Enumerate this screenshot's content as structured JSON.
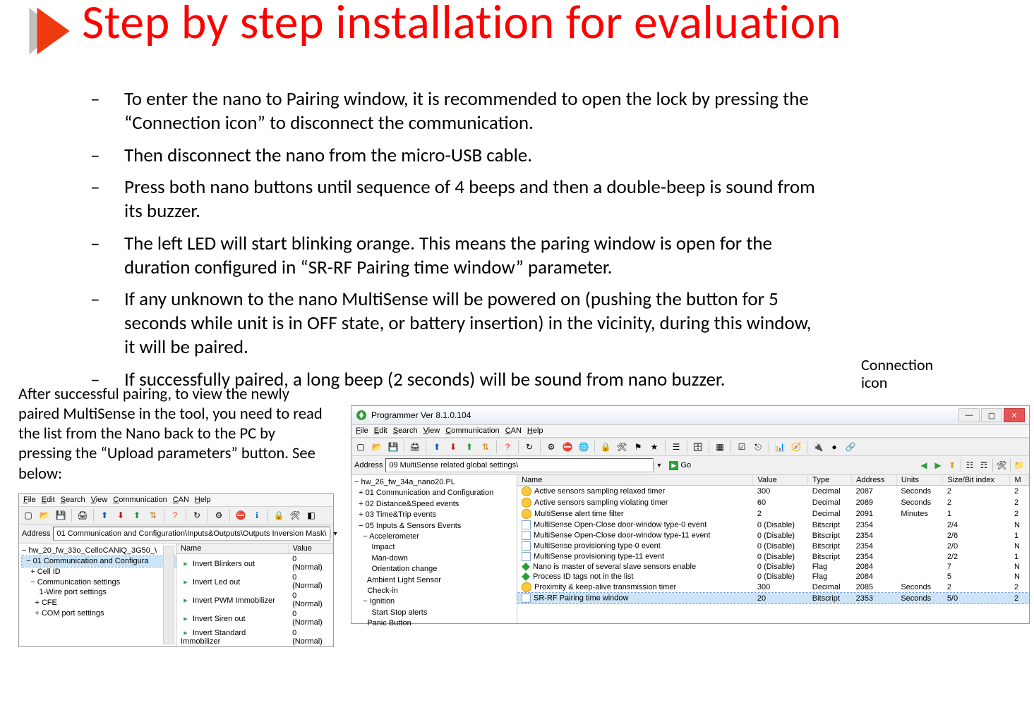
{
  "title": "Step by step installation for evaluation",
  "bullets": [
    "To enter the nano to Pairing window, it is recommended to open the lock by pressing the “Connection icon” to disconnect the communication.",
    "Then disconnect the nano from the micro-USB cable.",
    "Press both nano buttons until sequence of 4 beeps and then a double-beep is sound from its buzzer.",
    "The left LED will start blinking orange. This means the paring window is open for the duration configured in “SR-RF Pairing time window” parameter.",
    "If any unknown to the nano MultiSense will be powered on (pushing the button for 5 seconds while unit is in OFF state, or battery insertion) in the vicinity,  during this window, it will be paired.",
    "If successfully paired, a long beep (2 seconds) will be sound from nano buzzer."
  ],
  "conn_label": "Connection icon",
  "after_text": "After successful pairing, to view the newly paired MultiSense in the tool, you need to read the list from the Nano back to the PC by pressing the “Upload parameters”  button. See below:",
  "menus": [
    "File",
    "Edit",
    "Search",
    "View",
    "Communication",
    "CAN",
    "Help"
  ],
  "shot_left": {
    "address_label": "Address",
    "address": "01 Communication and Configuration\\Inputs&Outputs\\Outputs Inversion Mask\\",
    "tree": [
      "− hw_20_fw_33o_CelloCANiQ_3G50_\\",
      "  − 01 Communication and Configura",
      "    + Cell ID",
      "    − Communication settings",
      "        1-Wire port settings",
      "      + CFE",
      "      + COM port settings"
    ],
    "list": {
      "columns": [
        "Name",
        "Value"
      ],
      "rows": [
        [
          "Invert Blinkers out",
          "0 (Normal)"
        ],
        [
          "Invert Led out",
          "0 (Normal)"
        ],
        [
          "Invert PWM Immobilizer",
          "0 (Normal)"
        ],
        [
          "Invert Siren out",
          "0 (Normal)"
        ],
        [
          "Invert Standard Immobilizer",
          "0 (Normal)"
        ]
      ]
    }
  },
  "shot_right": {
    "title": "Programmer  Ver 8.1.0.104",
    "address_label": "Address",
    "address": "09 MultiSense related global settings\\",
    "go": "Go",
    "tree": [
      "− hw_26_fw_34a_nano20.PL",
      "  + 01 Communication and Configuration",
      "  + 02 Distance&Speed events",
      "  + 03 Time&Trip events",
      "  − 05 Inputs & Sensors Events",
      "    − Accelerometer",
      "        Impact",
      "        Man-down",
      "        Orientation change",
      "      Ambient Light Sensor",
      "      Check-in",
      "    − Ignition",
      "        Start Stop alerts",
      "      Panic Button"
    ],
    "list": {
      "columns": [
        "Name",
        "Value",
        "Type",
        "Address",
        "Units",
        "Size/Bit index",
        "M"
      ],
      "rows": [
        {
          "ic": "o",
          "cells": [
            "Active sensors sampling relaxed timer",
            "300",
            "Decimal",
            "2087",
            "Seconds",
            "2",
            "2"
          ]
        },
        {
          "ic": "o",
          "cells": [
            "Active sensors sampling violating timer",
            "60",
            "Decimal",
            "2089",
            "Seconds",
            "2",
            "2"
          ]
        },
        {
          "ic": "o",
          "cells": [
            "MultiSense alert time filter",
            "2",
            "Decimal",
            "2091",
            "Minutes",
            "1",
            "2"
          ]
        },
        {
          "ic": "b",
          "cells": [
            "MultiSense Open-Close door-window type-0 event",
            "0 (Disable)",
            "Bitscript",
            "2354",
            "",
            "2/4",
            "N"
          ]
        },
        {
          "ic": "b",
          "cells": [
            "MultiSense Open-Close door-window type-11 event",
            "0 (Disable)",
            "Bitscript",
            "2354",
            "",
            "2/6",
            "1"
          ]
        },
        {
          "ic": "b",
          "cells": [
            "MultiSense provisioning type-0 event",
            "0 (Disable)",
            "Bitscript",
            "2354",
            "",
            "2/0",
            "N"
          ]
        },
        {
          "ic": "b",
          "cells": [
            "MultiSense provisioning type-11 event",
            "0 (Disable)",
            "Bitscript",
            "2354",
            "",
            "2/2",
            "1"
          ]
        },
        {
          "ic": "g",
          "cells": [
            "Nano is master of several slave sensors enable",
            "0 (Disable)",
            "Flag",
            "2084",
            "",
            "7",
            "N"
          ]
        },
        {
          "ic": "g",
          "cells": [
            "Process ID tags not in the list",
            "0 (Disable)",
            "Flag",
            "2084",
            "",
            "5",
            "N"
          ]
        },
        {
          "ic": "o",
          "cells": [
            "Proximity & keep-alive transmission timer",
            "300",
            "Decimal",
            "2085",
            "Seconds",
            "2",
            "2"
          ]
        },
        {
          "ic": "b",
          "sel": true,
          "cells": [
            "SR-RF Pairing time window",
            "20",
            "Bitscript",
            "2353",
            "Seconds",
            "5/0",
            "2"
          ]
        }
      ]
    }
  }
}
